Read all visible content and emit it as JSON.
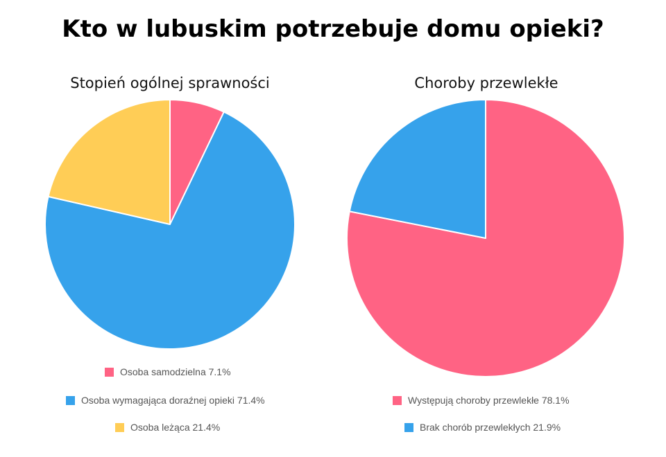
{
  "title": "Kto w lubuskim potrzebuje domu opieki?",
  "colors": {
    "pink": "#ff6384",
    "blue": "#36a2eb",
    "yellow": "#ffcd56"
  },
  "chart_data": [
    {
      "type": "pie",
      "title": "Stopień ogólnej sprawności",
      "legend_position": "bottom",
      "slices": [
        {
          "label": "Osoba samodzielna 7.1%",
          "value": 7.1,
          "color": "#ff6384"
        },
        {
          "label": "Osoba wymagająca doraźnej opieki 71.4%",
          "value": 71.4,
          "color": "#36a2eb"
        },
        {
          "label": "Osoba leżąca 21.4%",
          "value": 21.4,
          "color": "#ffcd56"
        }
      ]
    },
    {
      "type": "pie",
      "title": "Choroby przewlekłe",
      "legend_position": "bottom",
      "slices": [
        {
          "label": "Występują choroby przewlekłe 78.1%",
          "value": 78.1,
          "color": "#ff6384"
        },
        {
          "label": "Brak chorób przewlekłych 21.9%",
          "value": 21.9,
          "color": "#36a2eb"
        }
      ]
    }
  ]
}
